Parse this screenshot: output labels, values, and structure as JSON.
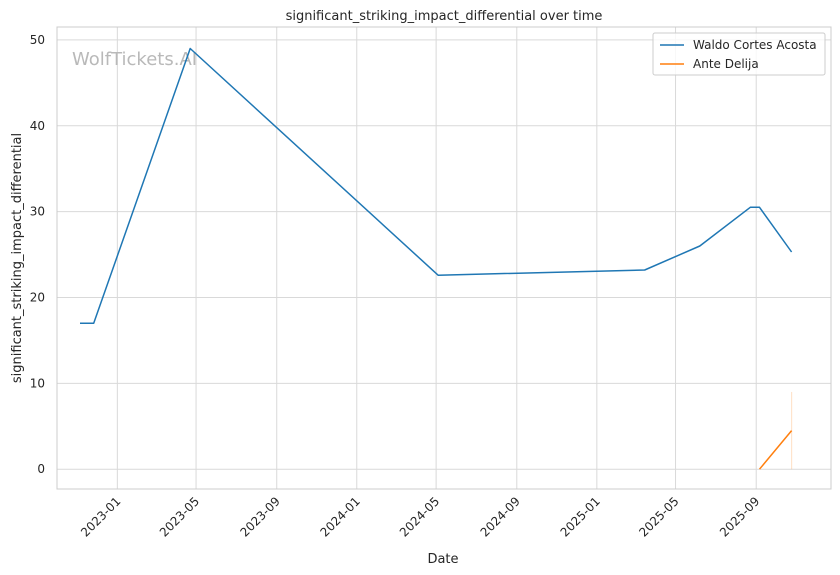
{
  "chart_data": {
    "type": "line",
    "title": "significant_striking_impact_differential over time",
    "xlabel": "Date",
    "ylabel": "significant_striking_impact_differential",
    "watermark": "WolfTickets.AI",
    "x_ticks": [
      "2023-01",
      "2023-05",
      "2023-09",
      "2024-01",
      "2024-05",
      "2024-09",
      "2025-01",
      "2025-05",
      "2025-09"
    ],
    "y_ticks": [
      0,
      10,
      20,
      30,
      40,
      50
    ],
    "xlim": [
      "2022-10-01",
      "2025-12-24"
    ],
    "ylim": [
      -2.3,
      51.5
    ],
    "grid": true,
    "legend_position": "top-right",
    "series": [
      {
        "name": "Waldo Cortes Acosta",
        "color": "#1f77b4",
        "points": [
          {
            "date": "2022-11-05",
            "value": 17.0
          },
          {
            "date": "2022-11-26",
            "value": 17.0
          },
          {
            "date": "2023-04-22",
            "value": 49.0
          },
          {
            "date": "2024-05-04",
            "value": 22.6
          },
          {
            "date": "2025-03-15",
            "value": 23.2
          },
          {
            "date": "2025-06-07",
            "value": 26.0
          },
          {
            "date": "2025-08-23",
            "value": 30.5
          },
          {
            "date": "2025-09-06",
            "value": 30.5
          },
          {
            "date": "2025-10-25",
            "value": 25.3
          }
        ]
      },
      {
        "name": "Ante Delija",
        "color": "#ff7f0e",
        "points": [
          {
            "date": "2025-09-06",
            "value": 0.0
          },
          {
            "date": "2025-10-25",
            "value": 4.5
          }
        ],
        "error_band": {
          "date": "2025-10-25",
          "low": 0.0,
          "high": 9.0
        }
      }
    ]
  }
}
